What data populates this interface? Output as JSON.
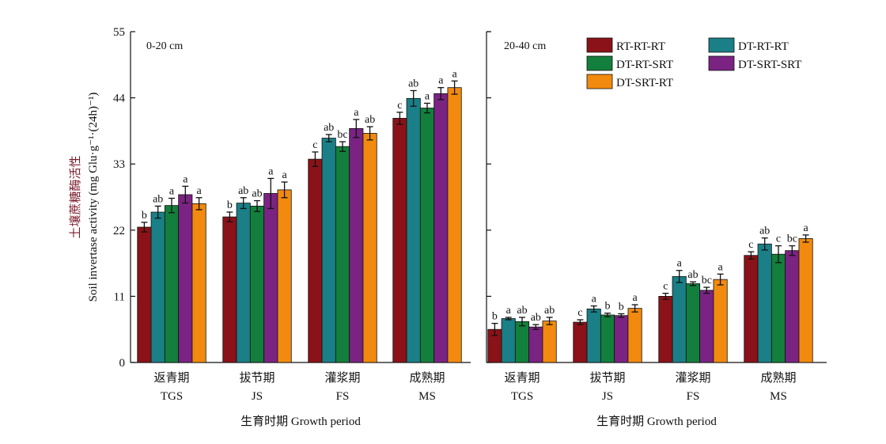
{
  "chart_data": [
    {
      "type": "bar",
      "panel_label": "0-20 cm",
      "ylabel": "Soil invertase activity (mg Glu·g⁻¹·(24h)⁻¹)",
      "ylabel_cn": "土壤蔗糖酶活性",
      "xlabel": "生育时期 Growth period",
      "ylim": [
        0,
        55
      ],
      "yticks": [
        0,
        11,
        22,
        33,
        44,
        55
      ],
      "categories": [
        {
          "cn": "返青期",
          "en": "TGS"
        },
        {
          "cn": "拔节期",
          "en": "JS"
        },
        {
          "cn": "灌浆期",
          "en": "FS"
        },
        {
          "cn": "成熟期",
          "en": "MS"
        }
      ],
      "series": [
        {
          "name": "RT-RT-RT",
          "color": "#8b1218",
          "values": [
            22.5,
            24.2,
            33.8,
            40.6
          ],
          "errors": [
            0.8,
            0.8,
            1.2,
            1.0
          ],
          "sig": [
            "b",
            "b",
            "c",
            "c"
          ]
        },
        {
          "name": "DT-RT-RT",
          "color": "#1a7f86",
          "values": [
            25.0,
            26.5,
            37.3,
            43.9
          ],
          "errors": [
            1.0,
            0.9,
            0.6,
            1.3
          ],
          "sig": [
            "ab",
            "ab",
            "ab",
            "ab"
          ]
        },
        {
          "name": "DT-RT-SRT",
          "color": "#137f3c",
          "values": [
            26.1,
            26.0,
            35.9,
            42.3
          ],
          "errors": [
            1.2,
            0.9,
            0.8,
            0.8
          ],
          "sig": [
            "a",
            "ab",
            "bc",
            "a"
          ]
        },
        {
          "name": "DT-SRT-SRT",
          "color": "#7b2383",
          "values": [
            27.9,
            28.1,
            38.9,
            44.7
          ],
          "errors": [
            1.4,
            2.5,
            1.5,
            1.0
          ],
          "sig": [
            "a",
            "a",
            "a",
            "a"
          ]
        },
        {
          "name": "DT-SRT-RT",
          "color": "#f18a0e",
          "values": [
            26.4,
            28.7,
            38.1,
            45.7
          ],
          "errors": [
            1.0,
            1.3,
            1.1,
            1.1
          ],
          "sig": [
            "a",
            "a",
            "ab",
            "a"
          ]
        }
      ]
    },
    {
      "type": "bar",
      "panel_label": "20-40 cm",
      "xlabel": "生育时期 Growth period",
      "ylim": [
        0,
        55
      ],
      "yticks": [
        0,
        11,
        22,
        33,
        44,
        55
      ],
      "categories": [
        {
          "cn": "返青期",
          "en": "TGS"
        },
        {
          "cn": "拔节期",
          "en": "JS"
        },
        {
          "cn": "灌浆期",
          "en": "FS"
        },
        {
          "cn": "成熟期",
          "en": "MS"
        }
      ],
      "series": [
        {
          "name": "RT-RT-RT",
          "color": "#8b1218",
          "values": [
            5.5,
            6.7,
            11.0,
            17.8
          ],
          "errors": [
            1.0,
            0.4,
            0.5,
            0.6
          ],
          "sig": [
            "b",
            "c",
            "c",
            "c"
          ]
        },
        {
          "name": "DT-RT-RT",
          "color": "#1a7f86",
          "values": [
            7.3,
            8.9,
            14.3,
            19.7
          ],
          "errors": [
            0.2,
            0.5,
            1.0,
            1.0
          ],
          "sig": [
            "a",
            "a",
            "a",
            "ab"
          ]
        },
        {
          "name": "DT-RT-SRT",
          "color": "#137f3c",
          "values": [
            6.8,
            7.9,
            13.1,
            18.0
          ],
          "errors": [
            0.7,
            0.3,
            0.3,
            1.4
          ],
          "sig": [
            "ab",
            "b",
            "ab",
            "c"
          ]
        },
        {
          "name": "DT-SRT-SRT",
          "color": "#7b2383",
          "values": [
            5.9,
            7.8,
            12.0,
            18.6
          ],
          "errors": [
            0.4,
            0.3,
            0.5,
            0.8
          ],
          "sig": [
            "ab",
            "b",
            "bc",
            "bc"
          ]
        },
        {
          "name": "DT-SRT-RT",
          "color": "#f18a0e",
          "values": [
            6.9,
            9.0,
            13.8,
            20.6
          ],
          "errors": [
            0.6,
            0.6,
            0.9,
            0.6
          ],
          "sig": [
            "ab",
            "a",
            "a",
            "a"
          ]
        }
      ]
    }
  ],
  "legend": {
    "placement": "top-right",
    "items": [
      {
        "name": "RT-RT-RT",
        "color": "#8b1218"
      },
      {
        "name": "DT-RT-RT",
        "color": "#1a7f86"
      },
      {
        "name": "DT-RT-SRT",
        "color": "#137f3c"
      },
      {
        "name": "DT-SRT-SRT",
        "color": "#7b2383"
      },
      {
        "name": "DT-SRT-RT",
        "color": "#f18a0e"
      }
    ]
  }
}
